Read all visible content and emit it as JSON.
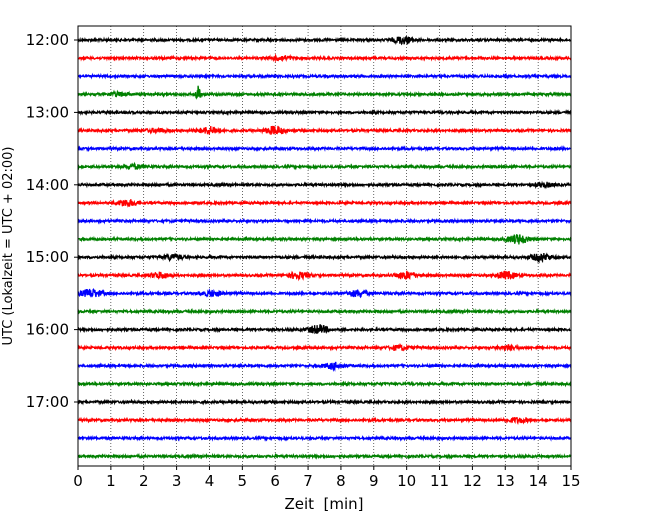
{
  "chart_data": {
    "type": "line",
    "title": "",
    "xlabel": "Zeit  [min]",
    "ylabel": "UTC (Lokalzeit = UTC + 02:00)",
    "xlim": [
      0,
      15
    ],
    "x_ticks": [
      0,
      1,
      2,
      3,
      4,
      5,
      6,
      7,
      8,
      9,
      10,
      11,
      12,
      13,
      14,
      15
    ],
    "y_tick_labels": [
      "12:00",
      "13:00",
      "14:00",
      "15:00",
      "16:00",
      "17:00"
    ],
    "row_interval_minutes": 15,
    "grid": "vertical dotted at each minute",
    "colors": [
      "#000000",
      "#ff0000",
      "#0000ff",
      "#008000"
    ],
    "series": [
      {
        "start": "12:00",
        "color": "#000000",
        "events": [
          {
            "t": 9.9,
            "amp": 1.6
          }
        ]
      },
      {
        "start": "12:15",
        "color": "#ff0000",
        "events": [
          {
            "t": 6.2,
            "amp": 1.0
          }
        ]
      },
      {
        "start": "12:30",
        "color": "#0000ff",
        "events": []
      },
      {
        "start": "12:45",
        "color": "#008000",
        "events": [
          {
            "t": 3.65,
            "amp": 4.5
          },
          {
            "t": 1.2,
            "amp": 0.8
          }
        ]
      },
      {
        "start": "13:00",
        "color": "#000000",
        "events": []
      },
      {
        "start": "13:15",
        "color": "#ff0000",
        "events": [
          {
            "t": 4.0,
            "amp": 1.6
          },
          {
            "t": 6.0,
            "amp": 1.8
          },
          {
            "t": 2.4,
            "amp": 0.8
          }
        ]
      },
      {
        "start": "13:30",
        "color": "#0000ff",
        "events": []
      },
      {
        "start": "13:45",
        "color": "#008000",
        "events": [
          {
            "t": 1.7,
            "amp": 0.9
          }
        ]
      },
      {
        "start": "14:00",
        "color": "#000000",
        "events": [
          {
            "t": 14.2,
            "amp": 0.9
          }
        ]
      },
      {
        "start": "14:15",
        "color": "#ff0000",
        "events": [
          {
            "t": 1.5,
            "amp": 1.4
          }
        ]
      },
      {
        "start": "14:30",
        "color": "#0000ff",
        "events": []
      },
      {
        "start": "14:45",
        "color": "#008000",
        "events": [
          {
            "t": 13.4,
            "amp": 2.0
          }
        ]
      },
      {
        "start": "15:00",
        "color": "#000000",
        "events": [
          {
            "t": 2.9,
            "amp": 1.2
          },
          {
            "t": 14.1,
            "amp": 1.6
          }
        ]
      },
      {
        "start": "15:15",
        "color": "#ff0000",
        "events": [
          {
            "t": 2.5,
            "amp": 1.3
          },
          {
            "t": 6.7,
            "amp": 1.4
          },
          {
            "t": 10.0,
            "amp": 1.6
          },
          {
            "t": 13.0,
            "amp": 1.6
          }
        ]
      },
      {
        "start": "15:30",
        "color": "#0000ff",
        "events": [
          {
            "t": 0.4,
            "amp": 1.8
          },
          {
            "t": 4.1,
            "amp": 1.2
          },
          {
            "t": 8.5,
            "amp": 1.4
          }
        ]
      },
      {
        "start": "15:45",
        "color": "#008000",
        "events": []
      },
      {
        "start": "16:00",
        "color": "#000000",
        "events": [
          {
            "t": 7.3,
            "amp": 1.8
          }
        ]
      },
      {
        "start": "16:15",
        "color": "#ff0000",
        "events": [
          {
            "t": 9.8,
            "amp": 1.0
          },
          {
            "t": 13.1,
            "amp": 1.0
          }
        ]
      },
      {
        "start": "16:30",
        "color": "#0000ff",
        "events": [
          {
            "t": 7.8,
            "amp": 1.3
          }
        ]
      },
      {
        "start": "16:45",
        "color": "#008000",
        "events": []
      },
      {
        "start": "17:00",
        "color": "#000000",
        "events": []
      },
      {
        "start": "17:15",
        "color": "#ff0000",
        "events": [
          {
            "t": 13.4,
            "amp": 1.0
          }
        ]
      },
      {
        "start": "17:30",
        "color": "#0000ff",
        "events": []
      },
      {
        "start": "17:45",
        "color": "#008000",
        "events": []
      }
    ]
  }
}
